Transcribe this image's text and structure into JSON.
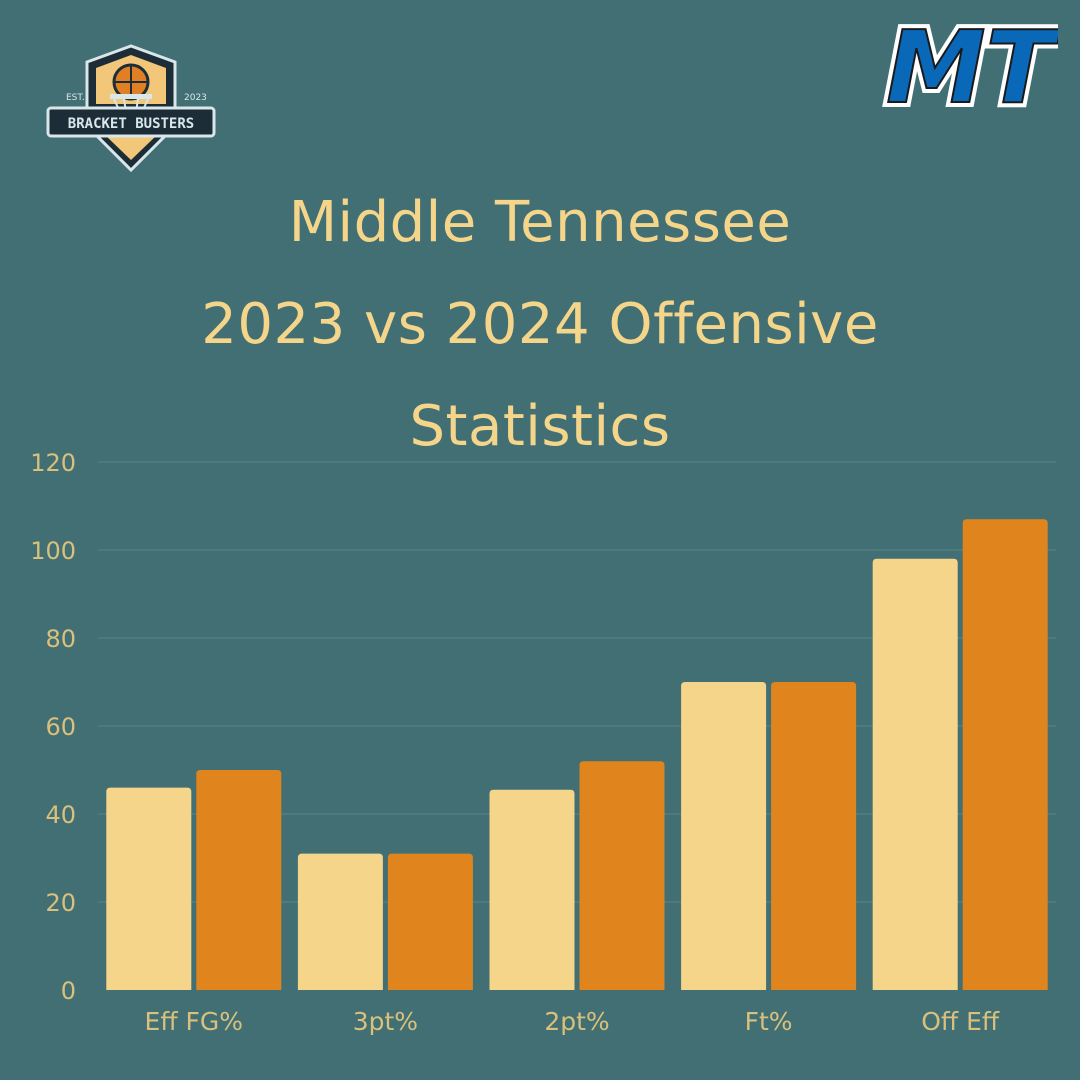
{
  "logos": {
    "left": {
      "icon": "bracket-busters-badge",
      "est_text": "EST.",
      "year_text": "2023",
      "name_text": "BRACKET BUSTERS"
    },
    "right": {
      "icon": "mt-block-letters-logo",
      "text": "MT"
    }
  },
  "colors": {
    "background": "#416f74",
    "title": "#f5d58a",
    "series_2023": "#f5d58a",
    "series_2024": "#e0851e",
    "grid": "#5a8589",
    "tick_text": "#d9c07c"
  },
  "chart_data": {
    "type": "bar",
    "title": "Middle Tennessee 2023 vs 2024 Offensive Statistics",
    "title_lines": [
      "Middle Tennessee",
      "2023 vs 2024 Offensive",
      "Statistics"
    ],
    "categories": [
      "Eff FG%",
      "3pt%",
      "2pt%",
      "Ft%",
      "Off Eff"
    ],
    "series": [
      {
        "values": [
          46,
          31,
          45.5,
          70,
          98
        ]
      },
      {
        "values": [
          50,
          31,
          52,
          70,
          107
        ]
      }
    ],
    "ylim": [
      0,
      120
    ],
    "yticks": [
      0,
      20,
      40,
      60,
      80,
      100,
      120
    ],
    "grid": true,
    "legend": "none",
    "xlabel": "",
    "ylabel": ""
  }
}
